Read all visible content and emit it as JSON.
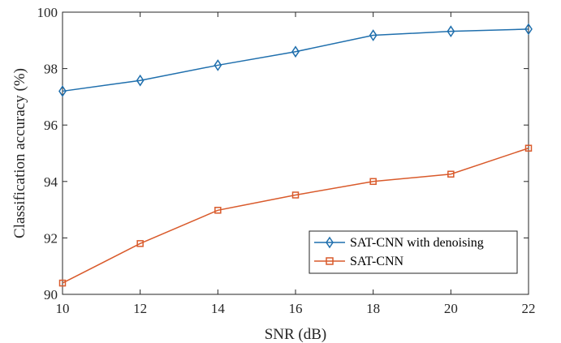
{
  "chart_data": {
    "type": "line",
    "xlabel": "SNR (dB)",
    "ylabel": "Classification accuracy (%)",
    "xlim": [
      10,
      22
    ],
    "ylim": [
      90,
      100
    ],
    "xticks": [
      10,
      12,
      14,
      16,
      18,
      20,
      22
    ],
    "yticks": [
      90,
      92,
      94,
      96,
      98,
      100
    ],
    "grid": false,
    "legend_position": "lower-right",
    "x": [
      10,
      12,
      14,
      16,
      18,
      20,
      22
    ],
    "series": [
      {
        "name": "SAT-CNN with denoising",
        "values": [
          97.2,
          97.58,
          98.12,
          98.6,
          99.18,
          99.32,
          99.4
        ],
        "color": "#1f6fad",
        "marker": "diamond"
      },
      {
        "name": "SAT-CNN",
        "values": [
          90.4,
          91.8,
          92.98,
          93.52,
          94.0,
          94.26,
          95.18
        ],
        "color": "#d95a2b",
        "marker": "square"
      }
    ]
  }
}
